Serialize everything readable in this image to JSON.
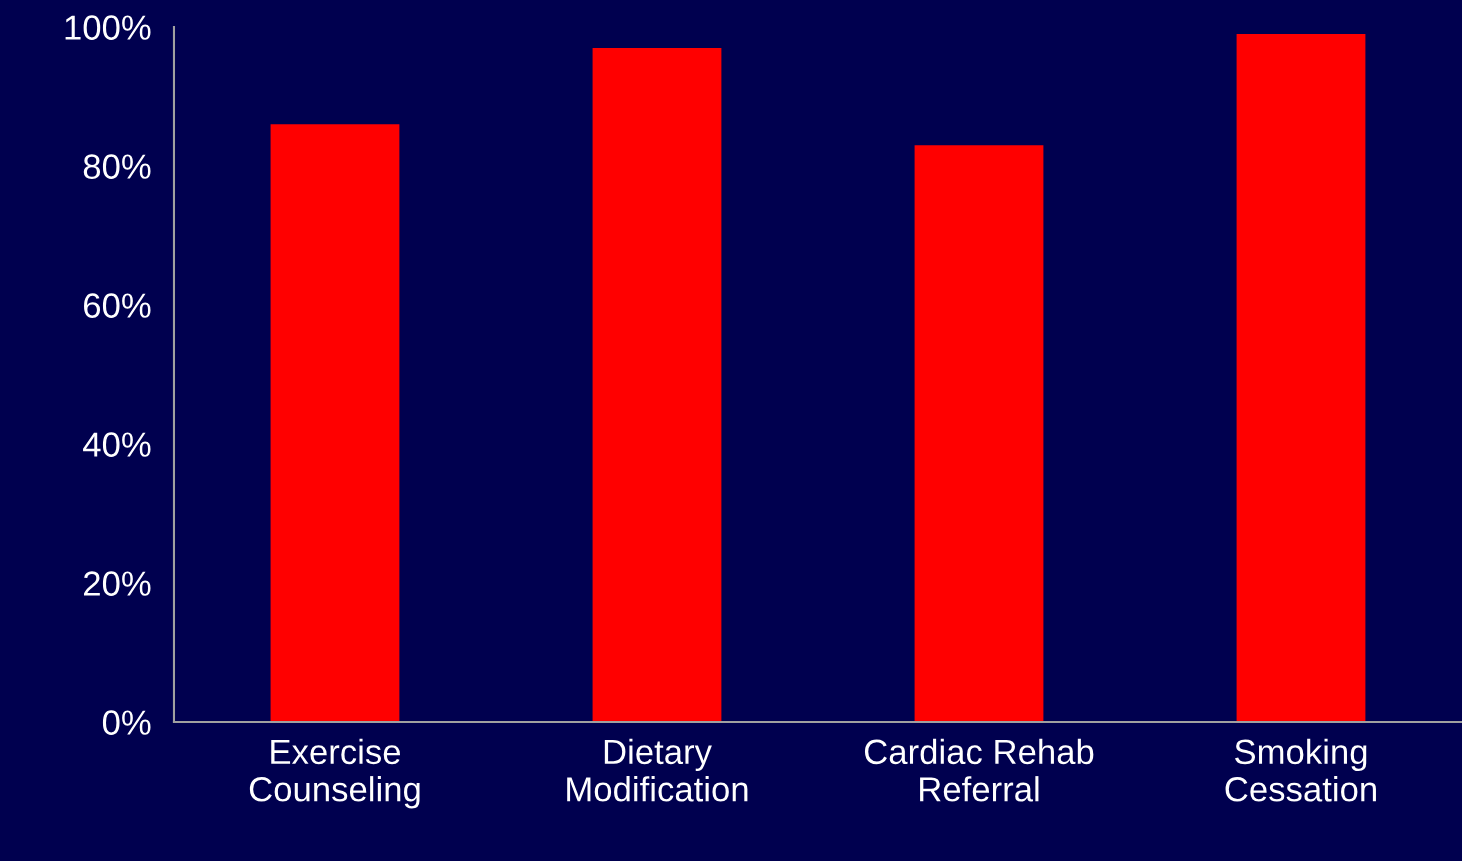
{
  "chart_data": {
    "type": "bar",
    "categories": [
      "Exercise\nCounseling",
      "Dietary\nModification",
      "Cardiac Rehab\nReferral",
      "Smoking\nCessation"
    ],
    "values": [
      86,
      97,
      83,
      99
    ],
    "color": "#ff0000",
    "ylim": [
      0,
      100
    ],
    "yticks": [
      {
        "value": 0,
        "label": "0%"
      },
      {
        "value": 20,
        "label": "20%"
      },
      {
        "value": 40,
        "label": "40%"
      },
      {
        "value": 60,
        "label": "60%"
      },
      {
        "value": 80,
        "label": "80%"
      },
      {
        "value": 100,
        "label": "100%"
      }
    ],
    "grid": false,
    "legend": false
  }
}
